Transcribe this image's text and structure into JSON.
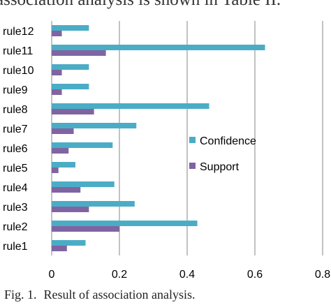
{
  "context_text": "association analysis is shown in Table II.",
  "caption": {
    "label": "Fig. 1.",
    "text": "Result of association analysis."
  },
  "colors": {
    "confidence": "#4bacc6",
    "support": "#8064a2",
    "grid": "#868686"
  },
  "chart_data": {
    "type": "bar",
    "orientation": "horizontal",
    "title": "",
    "xlabel": "",
    "ylabel": "",
    "xlim": [
      0,
      0.8
    ],
    "x_ticks": [
      "0",
      "0.2",
      "0.4",
      "0.6",
      "0.8"
    ],
    "grid": true,
    "legend_position": "right",
    "categories": [
      "rule1",
      "rule2",
      "rule3",
      "rule4",
      "rule5",
      "rule6",
      "rule7",
      "rule8",
      "rule9",
      "rule10",
      "rule11",
      "rule12"
    ],
    "series": [
      {
        "name": "Confidence",
        "values": [
          0.1,
          0.43,
          0.245,
          0.185,
          0.07,
          0.18,
          0.25,
          0.465,
          0.11,
          0.11,
          0.63,
          0.11
        ]
      },
      {
        "name": "Support",
        "values": [
          0.045,
          0.2,
          0.11,
          0.085,
          0.02,
          0.05,
          0.065,
          0.125,
          0.03,
          0.03,
          0.16,
          0.03
        ]
      }
    ]
  }
}
